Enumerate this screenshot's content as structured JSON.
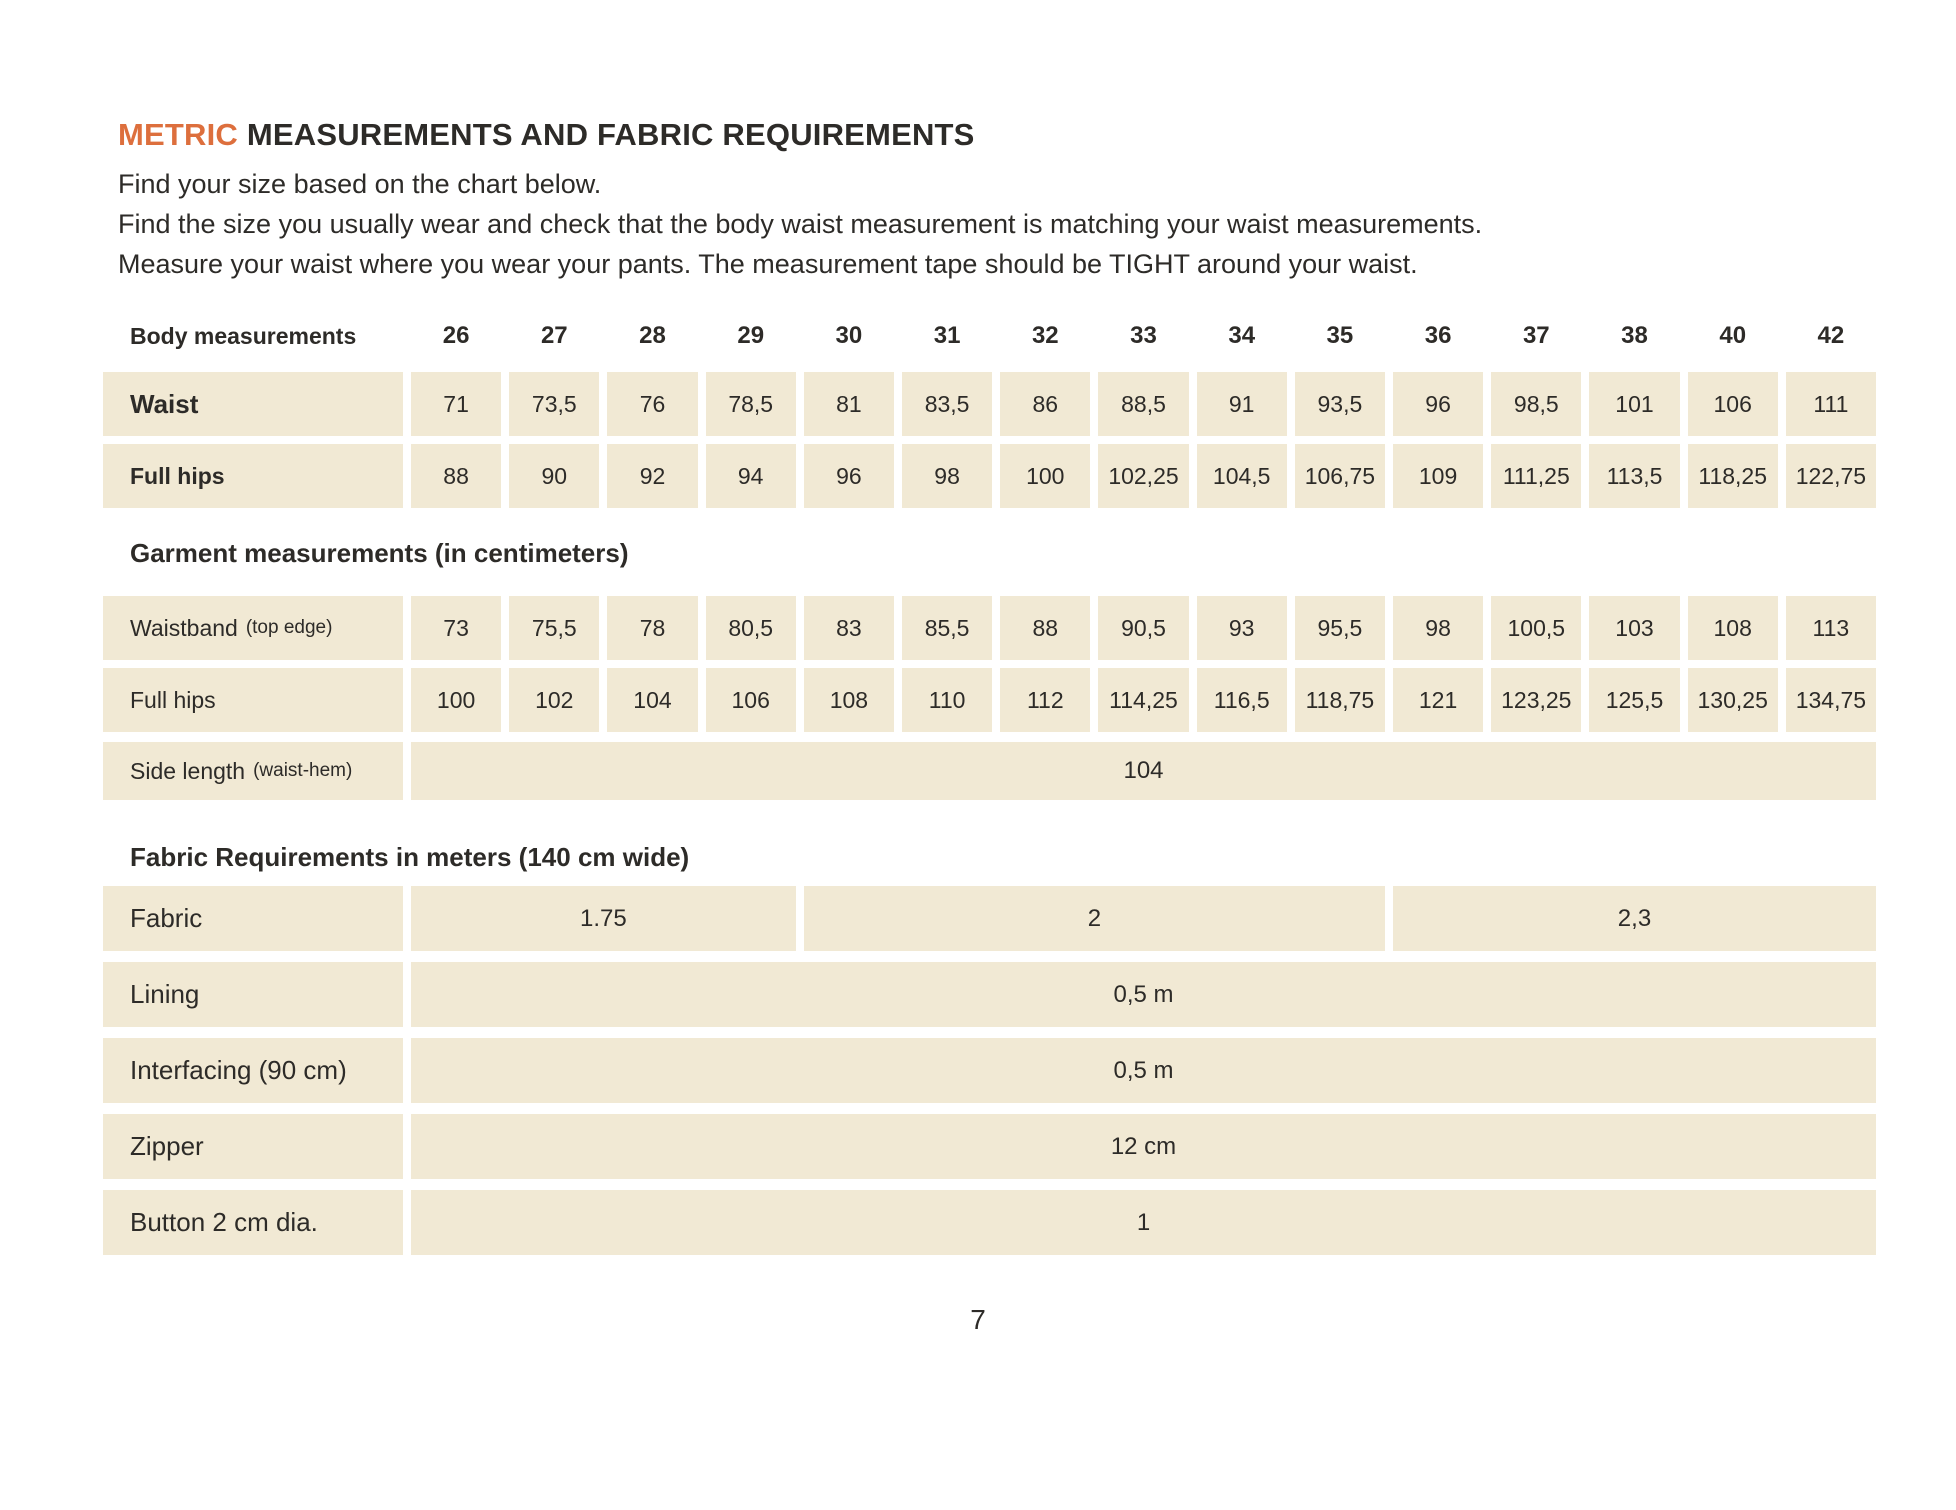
{
  "title": {
    "highlight": "METRIC",
    "rest": "MEASUREMENTS AND FABRIC REQUIREMENTS"
  },
  "intro": [
    "Find your size based on the chart below.",
    "Find the size you usually wear and check that the body waist measurement is matching your waist measurements.",
    "Measure your waist where you wear your pants. The measurement tape should be TIGHT around your waist."
  ],
  "colors": {
    "accent": "#dd6f3d",
    "cell": "#f1e9d4",
    "text": "#2d2b28"
  },
  "chart": {
    "header_label": "Body measurements",
    "sizes": [
      "26",
      "27",
      "28",
      "29",
      "30",
      "31",
      "32",
      "33",
      "34",
      "35",
      "36",
      "37",
      "38",
      "40",
      "42"
    ],
    "waist": {
      "label": "Waist",
      "values": [
        "71",
        "73,5",
        "76",
        "78,5",
        "81",
        "83,5",
        "86",
        "88,5",
        "91",
        "93,5",
        "96",
        "98,5",
        "101",
        "106",
        "111"
      ]
    },
    "full_hips_body": {
      "label": "Full hips",
      "values": [
        "88",
        "90",
        "92",
        "94",
        "96",
        "98",
        "100",
        "102,25",
        "104,5",
        "106,75",
        "109",
        "111,25",
        "113,5",
        "118,25",
        "122,75"
      ]
    },
    "garment_heading": "Garment measurements (in centimeters)",
    "waistband": {
      "label": "Waistband",
      "note": "(top edge)",
      "values": [
        "73",
        "75,5",
        "78",
        "80,5",
        "83",
        "85,5",
        "88",
        "90,5",
        "93",
        "95,5",
        "98",
        "100,5",
        "103",
        "108",
        "113"
      ]
    },
    "full_hips_garment": {
      "label": "Full hips",
      "values": [
        "100",
        "102",
        "104",
        "106",
        "108",
        "110",
        "112",
        "114,25",
        "116,5",
        "118,75",
        "121",
        "123,25",
        "125,5",
        "130,25",
        "134,75"
      ]
    },
    "side_length": {
      "label": "Side length",
      "note": "(waist-hem)",
      "value": "104"
    },
    "fabric_heading": "Fabric Requirements in meters (140 cm wide)",
    "fabric": {
      "label": "Fabric",
      "cells": [
        {
          "value": "1.75",
          "span": 4
        },
        {
          "value": "2",
          "span": 6
        },
        {
          "value": "2,3",
          "span": 5
        }
      ]
    },
    "notions": [
      {
        "label": "Lining",
        "value": "0,5 m"
      },
      {
        "label": "Interfacing (90 cm)",
        "value": "0,5 m"
      },
      {
        "label": "Zipper",
        "value": "12 cm"
      },
      {
        "label": "Button 2 cm dia.",
        "value": "1"
      }
    ]
  },
  "footer": {
    "page_number": "7"
  }
}
